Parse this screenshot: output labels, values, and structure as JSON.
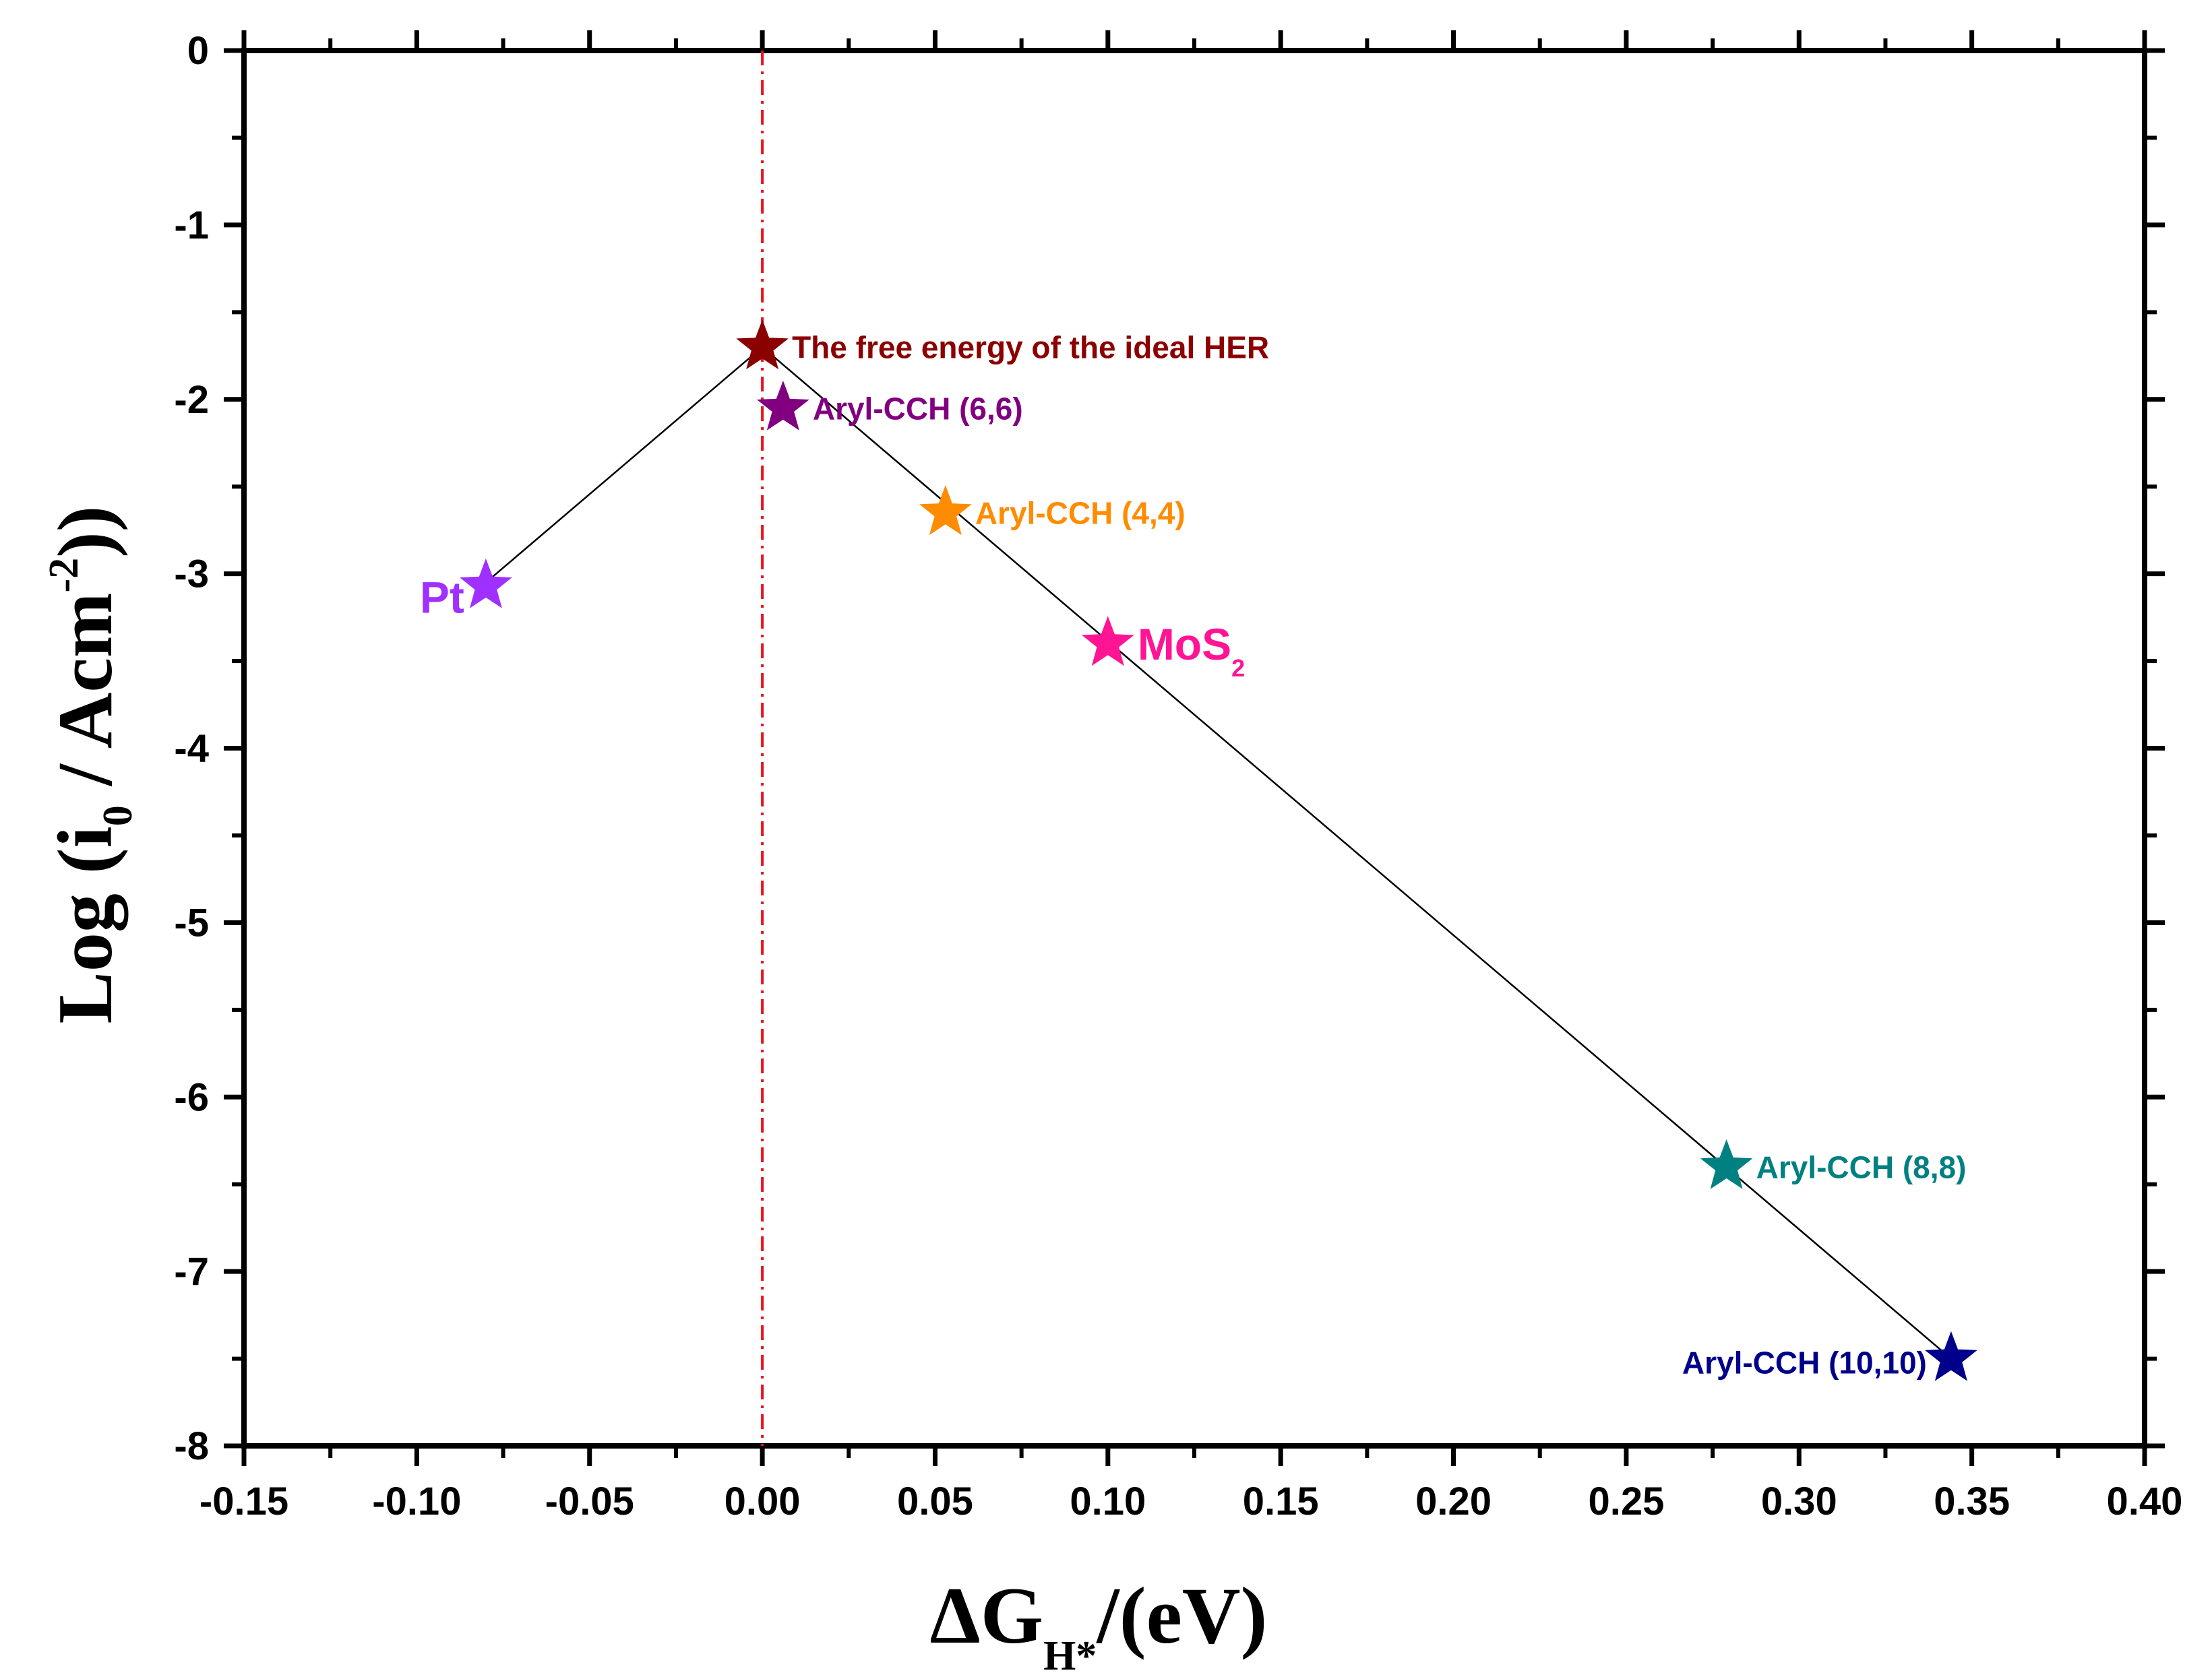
{
  "chart_data": {
    "type": "scatter",
    "title": "",
    "xlabel": {
      "symbol": "ΔG",
      "subscript": "H*",
      "suffix": "/(eV)"
    },
    "ylabel": {
      "prefix": "Log (i",
      "subscript": "0",
      "middle": " / Acm",
      "superscript": "-2",
      "suffix": "))"
    },
    "xlim": [
      -0.15,
      0.4
    ],
    "ylim": [
      -8,
      0
    ],
    "x_ticks": [
      -0.15,
      -0.1,
      -0.05,
      0.0,
      0.05,
      0.1,
      0.15,
      0.2,
      0.25,
      0.3,
      0.35,
      0.4
    ],
    "x_tick_labels": [
      "-0.15",
      "-0.10",
      "-0.05",
      "0.00",
      "0.05",
      "0.10",
      "0.15",
      "0.20",
      "0.25",
      "0.30",
      "0.35",
      "0.40"
    ],
    "y_ticks": [
      0,
      -1,
      -2,
      -3,
      -4,
      -5,
      -6,
      -7,
      -8
    ],
    "y_tick_labels": [
      "0",
      "-1",
      "-2",
      "-3",
      "-4",
      "-5",
      "-6",
      "-7",
      "-8"
    ],
    "grid": false,
    "reference_line": {
      "x": 0.0,
      "color": "#e8141c",
      "style": "dash-dot"
    },
    "volcano_line": {
      "color": "#000000",
      "points": [
        [
          -0.08,
          -3.05
        ],
        [
          0.0,
          -1.7
        ],
        [
          0.344,
          -7.5
        ]
      ]
    },
    "points": [
      {
        "name": "Pt",
        "x": -0.08,
        "y": -3.07,
        "color": "#a030ff",
        "label": "Pt",
        "label_subscript": "",
        "label_side": "left"
      },
      {
        "name": "ideal",
        "x": 0.0,
        "y": -1.7,
        "color": "#8b0000",
        "label": "The free energy of the ideal HER",
        "label_subscript": "",
        "label_side": "right"
      },
      {
        "name": "aryl-6-6",
        "x": 0.006,
        "y": -2.05,
        "color": "#800080",
        "label": "Aryl-CCH (6,6)",
        "label_subscript": "",
        "label_side": "right"
      },
      {
        "name": "aryl-4-4",
        "x": 0.053,
        "y": -2.65,
        "color": "#ff8c00",
        "label": "Aryl-CCH (4,4)",
        "label_subscript": "",
        "label_side": "right"
      },
      {
        "name": "mos2",
        "x": 0.1,
        "y": -3.4,
        "color": "#ff1493",
        "label": "MoS",
        "label_subscript": "2",
        "label_side": "right"
      },
      {
        "name": "aryl-8-8",
        "x": 0.279,
        "y": -6.4,
        "color": "#008080",
        "label": "Aryl-CCH (8,8)",
        "label_subscript": "",
        "label_side": "right"
      },
      {
        "name": "aryl-10-10",
        "x": 0.344,
        "y": -7.5,
        "color": "#00008b",
        "label": "Aryl-CCH (10,10)",
        "label_subscript": "",
        "label_side": "left"
      }
    ]
  }
}
